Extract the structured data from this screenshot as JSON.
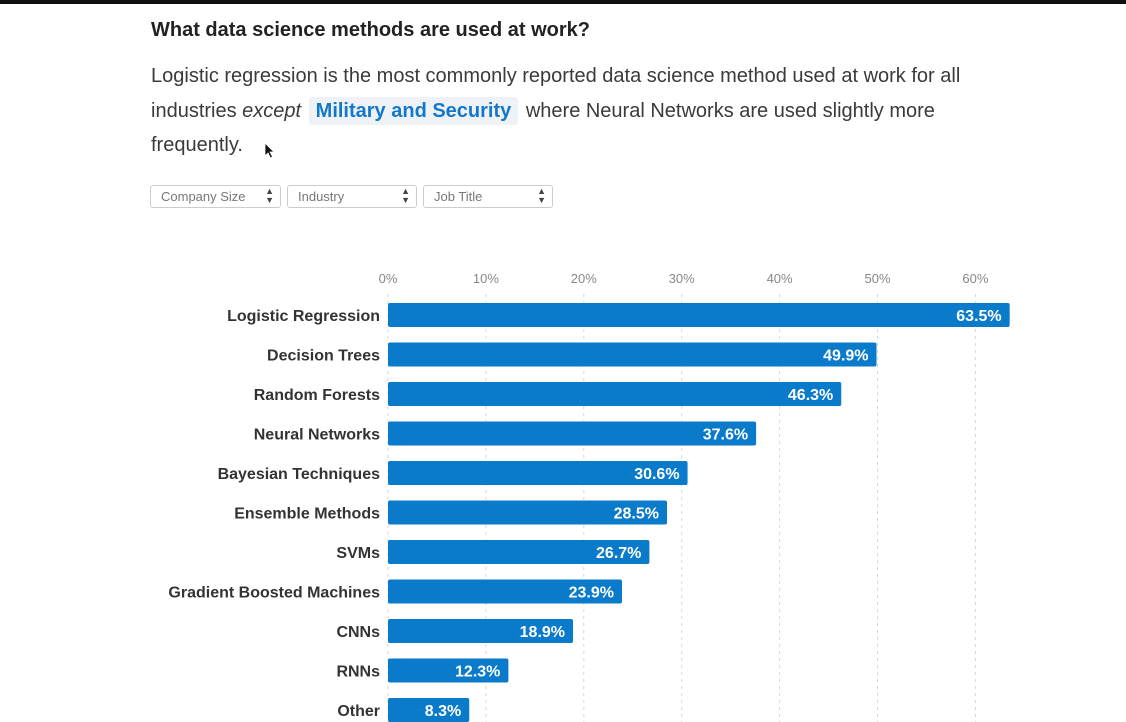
{
  "heading": "What data science methods are used at work?",
  "intro": {
    "part1": "Logistic regression is the most commonly reported data science method used at work for all industries ",
    "emphasis": "except",
    "highlight": "Military and Security",
    "part2": " where Neural Networks are used slightly more frequently."
  },
  "filters": [
    {
      "label": "Company Size"
    },
    {
      "label": "Industry"
    },
    {
      "label": "Job Title"
    }
  ],
  "colors": {
    "bar": "#0a7acb",
    "highlight_text": "#1478c8"
  },
  "chart_data": {
    "type": "bar",
    "orientation": "horizontal",
    "xlim": [
      0,
      64
    ],
    "ticks": [
      0,
      10,
      20,
      30,
      40,
      50,
      60
    ],
    "tick_labels": [
      "0%",
      "10%",
      "20%",
      "30%",
      "40%",
      "50%",
      "60%"
    ],
    "grid": true,
    "categories": [
      "Logistic Regression",
      "Decision Trees",
      "Random Forests",
      "Neural Networks",
      "Bayesian Techniques",
      "Ensemble Methods",
      "SVMs",
      "Gradient Boosted Machines",
      "CNNs",
      "RNNs",
      "Other"
    ],
    "values": [
      63.5,
      49.9,
      46.3,
      37.6,
      30.6,
      28.5,
      26.7,
      23.9,
      18.9,
      12.3,
      8.3
    ],
    "value_labels": [
      "63.5%",
      "49.9%",
      "46.3%",
      "37.6%",
      "30.6%",
      "28.5%",
      "26.7%",
      "23.9%",
      "18.9%",
      "12.3%",
      "8.3%"
    ]
  }
}
